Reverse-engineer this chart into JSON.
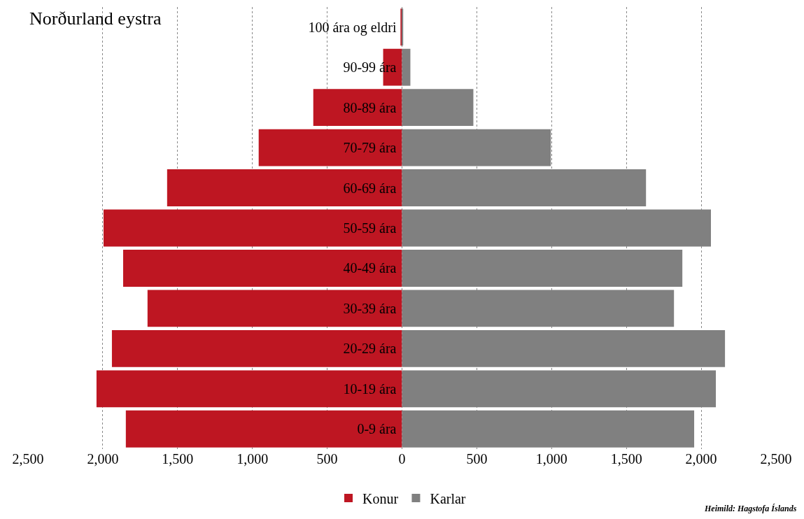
{
  "chart_data": {
    "type": "bar",
    "orientation": "horizontal",
    "stacked": true,
    "title": "Norðurland eystra",
    "categories": [
      "100 ára og eldri",
      "90-99 ára",
      "80-89 ára",
      "70-79 ára",
      "60-69 ára",
      "50-59 ára",
      "40-49 ára",
      "30-39 ára",
      "20-29 ára",
      "10-19 ára",
      "0-9 ára"
    ],
    "series": [
      {
        "name": "Konur",
        "color": "#be1622",
        "values": [
          -10,
          -126,
          -593,
          -958,
          -1570,
          -1995,
          -1864,
          -1701,
          -1939,
          -2042,
          -1846
        ]
      },
      {
        "name": "Karlar",
        "color": "#808080",
        "values": [
          8,
          56,
          477,
          995,
          1631,
          2065,
          1874,
          1818,
          2159,
          2098,
          1953
        ]
      }
    ],
    "xlim": [
      -2500,
      2500
    ],
    "xticks": [
      {
        "value": -2500,
        "label": "2,500"
      },
      {
        "value": -2000,
        "label": "2,000"
      },
      {
        "value": -1500,
        "label": "1,500"
      },
      {
        "value": -1000,
        "label": "1,000"
      },
      {
        "value": -500,
        "label": "500"
      },
      0,
      500,
      {
        "value": 1000,
        "label": "1,000"
      },
      {
        "value": 1500,
        "label": "1,500"
      },
      {
        "value": 2000,
        "label": "2,000"
      },
      {
        "value": 2500,
        "label": "2,500"
      }
    ],
    "grid": "x",
    "legend": "bottom",
    "annotations": [
      "Heimild: Hagstofa Íslands"
    ]
  }
}
